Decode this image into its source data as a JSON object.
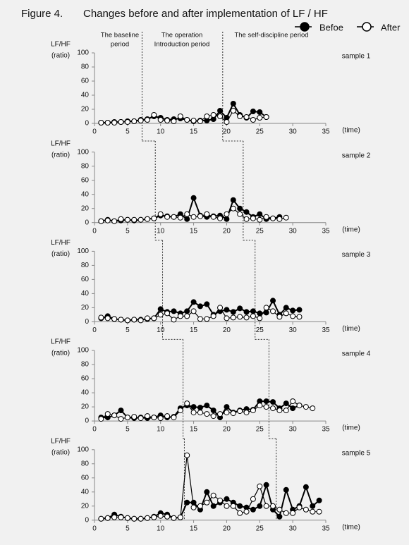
{
  "figure_label": "Figure 4.",
  "title": "Changes before and after implementation of LF / HF",
  "period_labels": [
    [
      "The baseline",
      "period"
    ],
    [
      "The operation",
      "Introduction period"
    ],
    [
      "The self-discipline period"
    ]
  ],
  "chart_data": [
    {
      "type": "line",
      "label": "sample 1",
      "ylabel": [
        "LF/HF",
        "(ratio)"
      ],
      "xlabel": "(time)",
      "xlim": [
        0,
        35
      ],
      "xticks": [
        0,
        5,
        10,
        15,
        20,
        25,
        30,
        35
      ],
      "ylim": [
        0,
        100
      ],
      "yticks": [
        0,
        20,
        40,
        60,
        80,
        100
      ],
      "period_boundaries": [
        7.2,
        19.4
      ],
      "x": [
        1,
        2,
        3,
        4,
        5,
        6,
        7,
        8,
        9,
        10,
        11,
        12,
        13,
        14,
        15,
        16,
        17,
        18,
        19,
        20,
        21,
        22,
        23,
        24,
        25,
        26
      ],
      "series": [
        {
          "name": "Befoe",
          "color": "#000000",
          "values": [
            1,
            1,
            2,
            2,
            3,
            3,
            5,
            6,
            10,
            8,
            5,
            6,
            7,
            5,
            3,
            4,
            4,
            6,
            18,
            8,
            28,
            12,
            8,
            17,
            16,
            9
          ]
        },
        {
          "name": "After",
          "color": "#ffffff",
          "values": [
            1,
            1,
            1,
            2,
            2,
            3,
            4,
            5,
            12,
            5,
            4,
            3,
            10,
            5,
            4,
            3,
            10,
            12,
            10,
            2,
            18,
            10,
            9,
            5,
            8,
            9
          ]
        }
      ]
    },
    {
      "type": "line",
      "label": "sample 2",
      "ylabel": [
        "LF/HF",
        "(ratio)"
      ],
      "xlabel": "(time)",
      "xlim": [
        0,
        35
      ],
      "xticks": [
        0,
        5,
        10,
        15,
        20,
        25,
        30,
        35
      ],
      "ylim": [
        0,
        100
      ],
      "yticks": [
        0,
        20,
        40,
        60,
        80,
        100
      ],
      "period_boundaries": [
        9.2,
        22.5
      ],
      "x": [
        1,
        2,
        3,
        4,
        5,
        6,
        7,
        8,
        9,
        10,
        11,
        12,
        13,
        14,
        15,
        16,
        17,
        18,
        19,
        20,
        21,
        22,
        23,
        24,
        25,
        26,
        27,
        28,
        29
      ],
      "series": [
        {
          "name": "Befoe",
          "color": "#000000",
          "values": [
            2,
            4,
            2,
            3,
            4,
            3,
            4,
            5,
            6,
            10,
            9,
            8,
            12,
            5,
            35,
            10,
            8,
            9,
            10,
            5,
            32,
            20,
            15,
            8,
            12,
            5,
            6,
            8,
            null
          ]
        },
        {
          "name": "After",
          "color": "#ffffff",
          "values": [
            2,
            3,
            2,
            5,
            4,
            4,
            4,
            5,
            6,
            12,
            8,
            8,
            7,
            12,
            8,
            9,
            12,
            8,
            6,
            12,
            20,
            12,
            5,
            6,
            4,
            8,
            6,
            5,
            7
          ]
        }
      ]
    },
    {
      "type": "line",
      "label": "sample 3",
      "ylabel": [
        "LF/HF",
        "(ratio)"
      ],
      "xlabel": "(time)",
      "xlim": [
        0,
        35
      ],
      "xticks": [
        0,
        5,
        10,
        15,
        20,
        25,
        30,
        35
      ],
      "ylim": [
        0,
        100
      ],
      "yticks": [
        0,
        20,
        40,
        60,
        80,
        100
      ],
      "period_boundaries": [
        10.3,
        24.3
      ],
      "x": [
        1,
        2,
        3,
        4,
        5,
        6,
        7,
        8,
        9,
        10,
        11,
        12,
        13,
        14,
        15,
        16,
        17,
        18,
        19,
        20,
        21,
        22,
        23,
        24,
        25,
        26,
        27,
        28,
        29,
        30,
        31
      ],
      "series": [
        {
          "name": "Befoe",
          "color": "#000000",
          "values": [
            5,
            8,
            4,
            3,
            2,
            3,
            3,
            4,
            5,
            18,
            14,
            15,
            12,
            15,
            28,
            22,
            25,
            10,
            15,
            17,
            14,
            19,
            14,
            15,
            12,
            13,
            30,
            10,
            20,
            16,
            17
          ]
        },
        {
          "name": "After",
          "color": "#ffffff",
          "values": [
            6,
            5,
            4,
            3,
            2,
            3,
            2,
            5,
            5,
            10,
            12,
            3,
            8,
            8,
            15,
            4,
            4,
            8,
            20,
            5,
            6,
            7,
            6,
            8,
            5,
            20,
            15,
            7,
            12,
            8,
            7
          ]
        }
      ]
    },
    {
      "type": "line",
      "label": "sample 4",
      "ylabel": [
        "LF/HF",
        "(ratio)"
      ],
      "xlabel": "(time)",
      "xlim": [
        0,
        35
      ],
      "xticks": [
        0,
        5,
        10,
        15,
        20,
        25,
        30,
        35
      ],
      "ylim": [
        0,
        100
      ],
      "yticks": [
        0,
        20,
        40,
        60,
        80,
        100
      ],
      "period_boundaries": [
        13.4,
        26.4
      ],
      "x": [
        1,
        2,
        3,
        4,
        5,
        6,
        7,
        8,
        9,
        10,
        11,
        12,
        13,
        14,
        15,
        16,
        17,
        18,
        19,
        20,
        21,
        22,
        23,
        24,
        25,
        26,
        27,
        28,
        29,
        30,
        31,
        32,
        33
      ],
      "series": [
        {
          "name": "Befoe",
          "color": "#000000",
          "values": [
            5,
            5,
            8,
            15,
            5,
            4,
            5,
            4,
            5,
            8,
            5,
            6,
            18,
            22,
            20,
            19,
            22,
            15,
            5,
            20,
            12,
            15,
            17,
            16,
            28,
            28,
            27,
            18,
            25,
            18,
            22,
            null,
            null
          ]
        },
        {
          "name": "After",
          "color": "#ffffff",
          "values": [
            3,
            10,
            8,
            3,
            5,
            6,
            4,
            7,
            5,
            4,
            7,
            5,
            15,
            25,
            12,
            12,
            10,
            7,
            10,
            12,
            11,
            14,
            12,
            15,
            22,
            20,
            18,
            15,
            15,
            28,
            22,
            20,
            18
          ]
        }
      ]
    },
    {
      "type": "line",
      "label": "sample 5",
      "ylabel": [
        "LF/HF",
        "(ratio)"
      ],
      "xlabel": "(time)",
      "xlim": [
        0,
        35
      ],
      "xticks": [
        0,
        5,
        10,
        15,
        20,
        25,
        30,
        35
      ],
      "ylim": [
        0,
        100
      ],
      "yticks": [
        0,
        20,
        40,
        60,
        80,
        100
      ],
      "period_boundaries": [
        13.6,
        27.5
      ],
      "x": [
        1,
        2,
        3,
        4,
        5,
        6,
        7,
        8,
        9,
        10,
        11,
        12,
        13,
        14,
        15,
        16,
        17,
        18,
        19,
        20,
        21,
        22,
        23,
        24,
        25,
        26,
        27,
        28,
        29,
        30,
        31,
        32,
        33,
        34
      ],
      "series": [
        {
          "name": "Befoe",
          "color": "#000000",
          "values": [
            2,
            3,
            8,
            5,
            3,
            2,
            2,
            3,
            5,
            10,
            8,
            3,
            4,
            25,
            25,
            15,
            40,
            20,
            25,
            30,
            25,
            20,
            18,
            15,
            20,
            50,
            15,
            5,
            43,
            15,
            20,
            47,
            20,
            28
          ]
        },
        {
          "name": "After",
          "color": "#ffffff",
          "values": [
            2,
            3,
            4,
            4,
            3,
            2,
            2,
            3,
            4,
            6,
            5,
            3,
            4,
            92,
            18,
            20,
            25,
            35,
            28,
            20,
            20,
            10,
            12,
            30,
            48,
            20,
            20,
            15,
            10,
            10,
            18,
            15,
            12,
            12
          ]
        }
      ]
    }
  ]
}
